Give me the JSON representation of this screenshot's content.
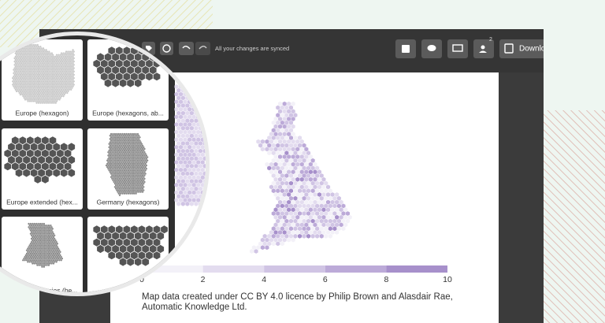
{
  "toolbar": {
    "status": "All your changes are synced",
    "notification_count": 2,
    "download": "Download"
  },
  "templates": [
    {
      "label": "Europe (hexagon)"
    },
    {
      "label": "Europe (hexagons, ab..."
    },
    {
      "label": "Europe extended (hex..."
    },
    {
      "label": "Germany (hexagons)"
    },
    {
      "label": "UK constituencies (he..."
    }
  ],
  "legend": {
    "ticks": [
      0,
      2,
      4,
      6,
      8,
      10
    ],
    "colors": [
      "#f3f1f8",
      "#e3dcef",
      "#d0c4e4",
      "#bcaad8",
      "#a790cb"
    ]
  },
  "caption": [
    "Map data created under CC BY 4.0 licence by Philip Brown and Alasdair Rae,",
    "Automatic Knowledge Ltd."
  ]
}
